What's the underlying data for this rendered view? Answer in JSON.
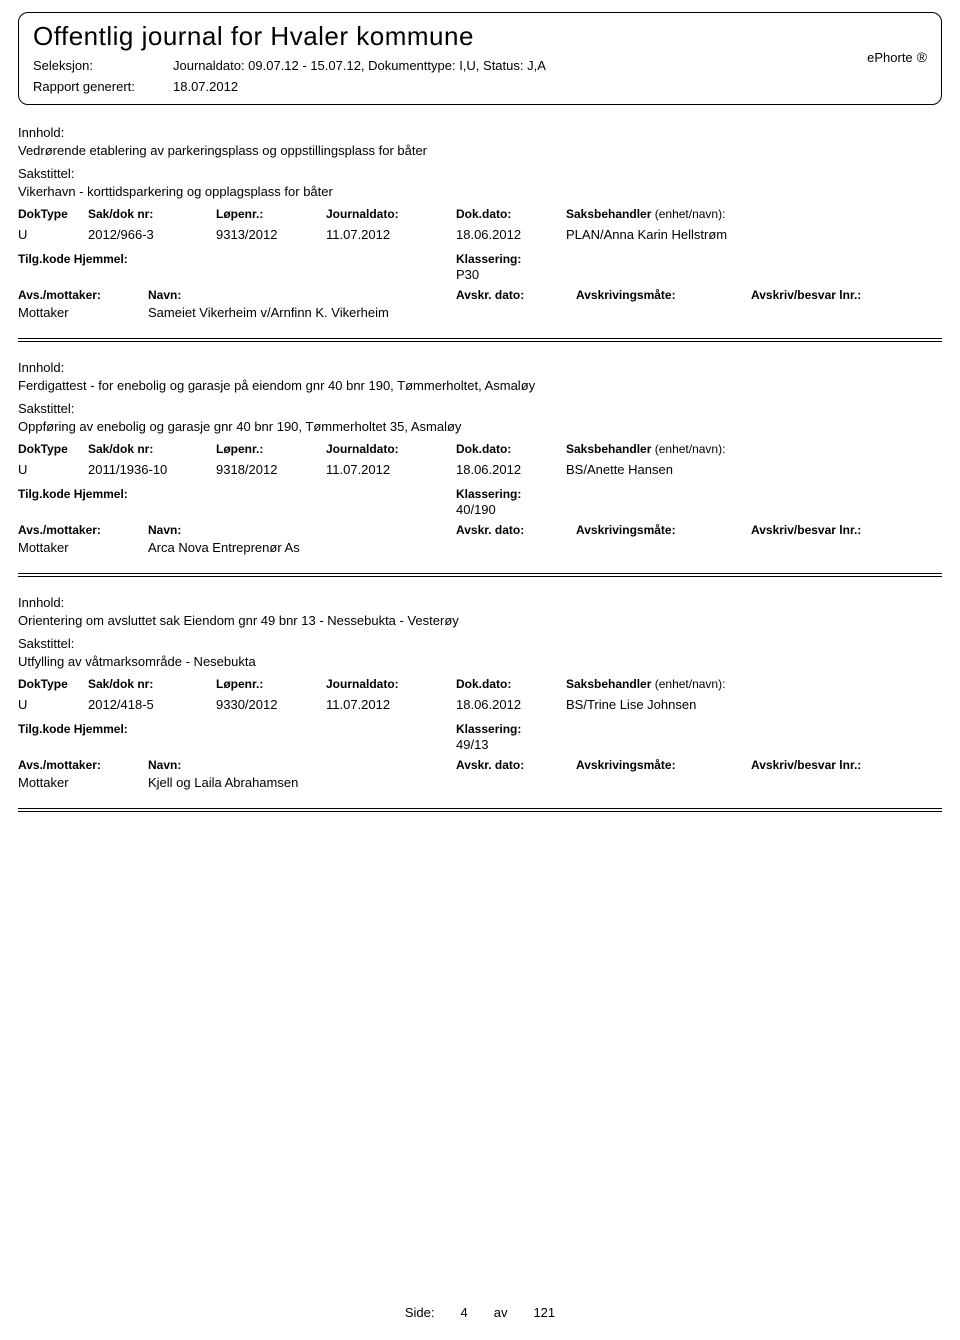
{
  "header": {
    "title": "Offentlig journal for Hvaler kommune",
    "ephorte": "ePhorte",
    "reg_symbol": "®",
    "seleksjon_label": "Seleksjon:",
    "seleksjon_value": "Journaldato: 09.07.12 - 15.07.12, Dokumenttype: I,U, Status: J,A",
    "rapport_label": "Rapport generert:",
    "rapport_value": "18.07.2012"
  },
  "labels": {
    "innhold": "Innhold:",
    "sakstittel": "Sakstittel:",
    "doktype": "DokType",
    "saknr": "Sak/dok nr:",
    "lopenr": "Løpenr.:",
    "journaldato": "Journaldato:",
    "dokdato": "Dok.dato:",
    "saksbehandler": "Saksbehandler",
    "enhet": "(enhet/navn):",
    "tilgkode": "Tilg.kode Hjemmel:",
    "klassering": "Klassering:",
    "avs_mottaker": "Avs./mottaker:",
    "navn": "Navn:",
    "avskr_dato": "Avskr. dato:",
    "avskrivingsmate": "Avskrivingsmåte:",
    "avskriv_besvar": "Avskriv/besvar lnr.:",
    "mottaker": "Mottaker"
  },
  "entries": [
    {
      "innhold": "Vedrørende etablering av parkeringsplass og oppstillingsplass for båter",
      "sakstittel": "Vikerhavn - korttidsparkering og opplagsplass for båter",
      "doktype": "U",
      "saknr": "2012/966-3",
      "lopenr": "9313/2012",
      "journaldato": "11.07.2012",
      "dokdato": "18.06.2012",
      "saksbehandler": "PLAN/Anna Karin Hellstrøm",
      "klassering": "P30",
      "mottaker_navn": "Sameiet Vikerheim v/Arnfinn K. Vikerheim"
    },
    {
      "innhold": "Ferdigattest - for enebolig og garasje på eiendom gnr 40 bnr 190, Tømmerholtet, Asmaløy",
      "sakstittel": "Oppføring av enebolig og garasje gnr 40 bnr 190, Tømmerholtet 35, Asmaløy",
      "doktype": "U",
      "saknr": "2011/1936-10",
      "lopenr": "9318/2012",
      "journaldato": "11.07.2012",
      "dokdato": "18.06.2012",
      "saksbehandler": "BS/Anette Hansen",
      "klassering": "40/190",
      "mottaker_navn": "Arca Nova Entreprenør As"
    },
    {
      "innhold": "Orientering om avsluttet sak Eiendom gnr 49 bnr 13 - Nessebukta - Vesterøy",
      "sakstittel": "Utfylling av våtmarksområde - Nesebukta",
      "doktype": "U",
      "saknr": "2012/418-5",
      "lopenr": "9330/2012",
      "journaldato": "11.07.2012",
      "dokdato": "18.06.2012",
      "saksbehandler": "BS/Trine Lise Johnsen",
      "klassering": "49/13",
      "mottaker_navn": "Kjell og Laila Abrahamsen"
    }
  ],
  "footer": {
    "side_label": "Side:",
    "page_num": "4",
    "av_label": "av",
    "total": "121"
  }
}
